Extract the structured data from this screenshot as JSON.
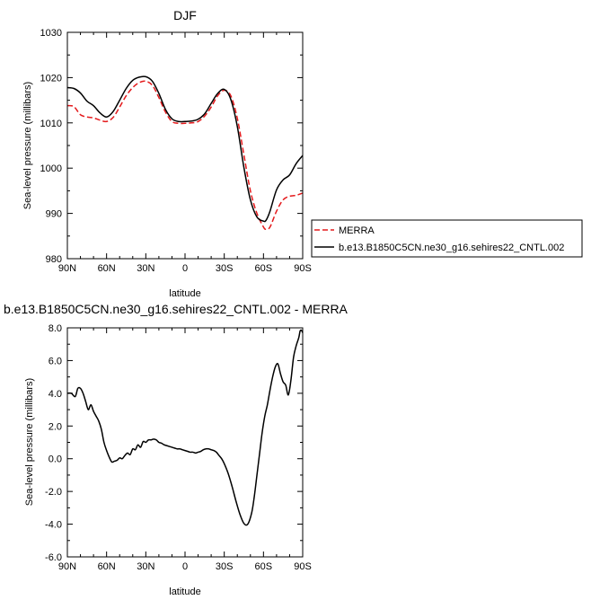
{
  "chart_data": [
    {
      "type": "line",
      "title": "DJF",
      "xlabel": "latitude",
      "ylabel": "Sea-level pressure (millibars)",
      "xlim": [
        90,
        -90
      ],
      "ylim": [
        980,
        1030
      ],
      "x_ticks": [
        90,
        60,
        30,
        0,
        -30,
        -60,
        -90
      ],
      "x_tick_labels": [
        "90N",
        "60N",
        "30N",
        "0",
        "30S",
        "60S",
        "90S"
      ],
      "y_ticks": [
        980,
        990,
        1000,
        1010,
        1020,
        1030
      ],
      "y_tick_labels": [
        "980",
        "990",
        "1000",
        "1010",
        "1020",
        "1030"
      ],
      "grid": false,
      "legend": "outside-right",
      "series": [
        {
          "name": "MERRA",
          "color": "#e41a1c",
          "dash": "dashed",
          "x": [
            90,
            85,
            80,
            75,
            70,
            65,
            60,
            55,
            50,
            45,
            40,
            35,
            30,
            25,
            20,
            15,
            10,
            5,
            0,
            -5,
            -10,
            -15,
            -20,
            -25,
            -30,
            -35,
            -40,
            -45,
            -50,
            -55,
            -60,
            -62,
            -65,
            -70,
            -75,
            -80,
            -85,
            -90
          ],
          "values": [
            1013.8,
            1013.6,
            1011.8,
            1011.3,
            1011.1,
            1010.6,
            1010.3,
            1011.2,
            1013.5,
            1016.0,
            1017.8,
            1018.9,
            1019.2,
            1018.3,
            1015.6,
            1012.4,
            1010.3,
            1009.9,
            1009.9,
            1010.0,
            1010.3,
            1011.5,
            1013.5,
            1016.0,
            1017.2,
            1016.0,
            1011.0,
            1003.0,
            995.0,
            990.0,
            987.0,
            986.5,
            987.0,
            990.5,
            993.0,
            993.8,
            994.0,
            994.5
          ]
        },
        {
          "name": "b.e13.B1850C5CN.ne30_g16.sehires22_CNTL.002",
          "color": "#000000",
          "dash": "solid",
          "x": [
            90,
            85,
            80,
            75,
            70,
            65,
            60,
            55,
            50,
            45,
            40,
            35,
            30,
            25,
            20,
            15,
            10,
            5,
            0,
            -5,
            -10,
            -15,
            -20,
            -25,
            -30,
            -35,
            -40,
            -45,
            -50,
            -55,
            -60,
            -62,
            -65,
            -70,
            -75,
            -80,
            -85,
            -90
          ],
          "values": [
            1017.8,
            1017.6,
            1016.6,
            1014.8,
            1013.8,
            1012.2,
            1011.3,
            1012.5,
            1015.0,
            1017.6,
            1019.4,
            1020.1,
            1020.2,
            1019.2,
            1016.5,
            1013.0,
            1010.9,
            1010.3,
            1010.3,
            1010.4,
            1010.8,
            1012.0,
            1014.3,
            1016.5,
            1017.4,
            1015.2,
            1009.2,
            1000.2,
            993.0,
            989.2,
            988.3,
            988.5,
            990.5,
            995.2,
            997.4,
            998.5,
            1001.0,
            1002.8
          ]
        }
      ]
    },
    {
      "type": "line",
      "title": "b.e13.B1850C5CN.ne30_g16.sehires22_CNTL.002 - MERRA",
      "xlabel": "latitude",
      "ylabel": "Sea-level pressure (millibars)",
      "xlim": [
        90,
        -90
      ],
      "ylim": [
        -6,
        8
      ],
      "x_ticks": [
        90,
        60,
        30,
        0,
        -30,
        -60,
        -90
      ],
      "x_tick_labels": [
        "90N",
        "60N",
        "30N",
        "0",
        "30S",
        "60S",
        "90S"
      ],
      "y_ticks": [
        -6,
        -4,
        -2,
        0,
        2,
        4,
        6,
        8
      ],
      "y_tick_labels": [
        "-6.0",
        "-4.0",
        "-2.0",
        "0.0",
        "2.0",
        "4.0",
        "6.0",
        "8.0"
      ],
      "grid": false,
      "series": [
        {
          "color": "#000000",
          "dash": "solid",
          "x": [
            90,
            87,
            84,
            82,
            80,
            78,
            76,
            74,
            72,
            70,
            68,
            66,
            64,
            62,
            60,
            58,
            56,
            54,
            52,
            50,
            48,
            46,
            44,
            42,
            40,
            38,
            36,
            34,
            32,
            30,
            28,
            26,
            24,
            22,
            20,
            18,
            16,
            14,
            12,
            10,
            8,
            6,
            4,
            2,
            0,
            -2,
            -4,
            -6,
            -8,
            -10,
            -12,
            -14,
            -16,
            -18,
            -20,
            -22,
            -24,
            -26,
            -28,
            -30,
            -33,
            -36,
            -39,
            -42,
            -45,
            -48,
            -51,
            -53,
            -55,
            -57,
            -59,
            -61,
            -63,
            -65,
            -67,
            -69,
            -71,
            -73,
            -75,
            -77,
            -79,
            -81,
            -83,
            -85,
            -87,
            -88,
            -89,
            -90
          ],
          "values": [
            4.0,
            4.0,
            3.8,
            4.3,
            4.3,
            4.0,
            3.5,
            3.0,
            3.3,
            2.9,
            2.6,
            2.3,
            1.8,
            1.0,
            0.5,
            0.1,
            -0.2,
            -0.15,
            -0.1,
            0.05,
            0.0,
            0.2,
            0.35,
            0.25,
            0.6,
            0.55,
            0.85,
            0.7,
            1.05,
            1.0,
            1.15,
            1.15,
            1.2,
            1.15,
            1.0,
            0.95,
            0.85,
            0.8,
            0.75,
            0.7,
            0.65,
            0.6,
            0.6,
            0.55,
            0.5,
            0.45,
            0.4,
            0.4,
            0.35,
            0.4,
            0.45,
            0.55,
            0.6,
            0.6,
            0.55,
            0.5,
            0.4,
            0.2,
            0.0,
            -0.3,
            -0.9,
            -1.7,
            -2.6,
            -3.4,
            -3.95,
            -4.0,
            -3.3,
            -2.3,
            -1.0,
            0.3,
            1.6,
            2.6,
            3.3,
            4.2,
            5.0,
            5.6,
            5.8,
            5.2,
            4.7,
            4.5,
            3.9,
            4.8,
            6.2,
            6.9,
            7.4,
            7.8,
            7.85,
            7.7
          ]
        }
      ]
    }
  ]
}
